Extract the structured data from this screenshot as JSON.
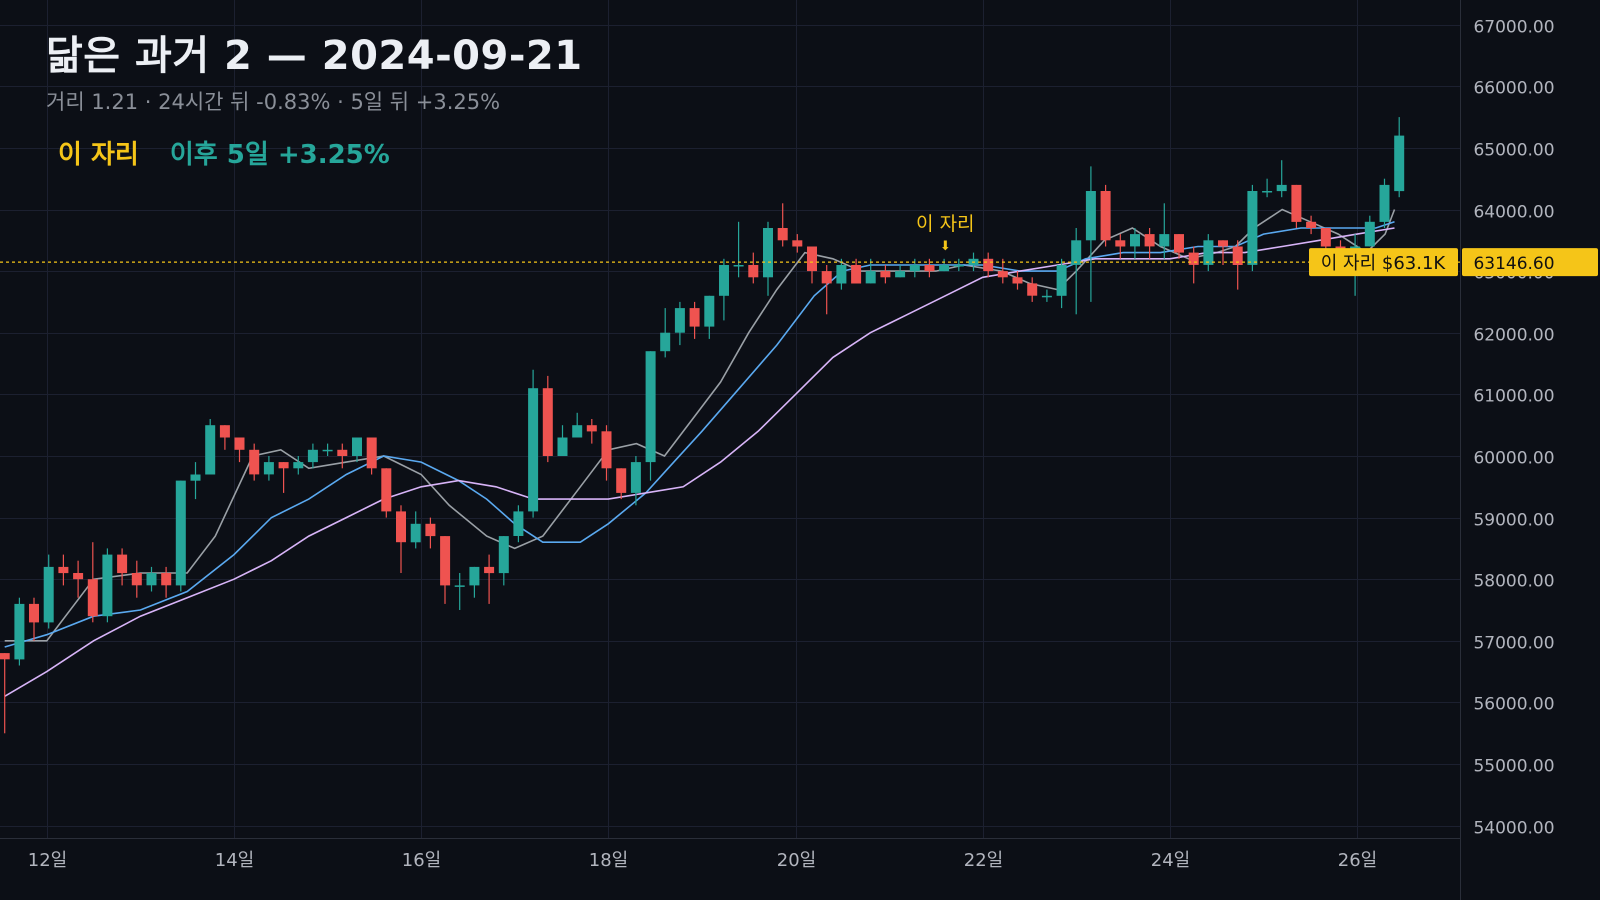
{
  "header": {
    "title": "닮은 과거 2 — 2024-09-21",
    "subtitle": "거리 1.21 · 24시간 뒤 -0.83% · 5일 뒤 +3.25%"
  },
  "legend": {
    "marker_label": "이 자리",
    "performance": "이후 5일 +3.25%"
  },
  "colors": {
    "background": "#0c0f16",
    "up": "#26a69a",
    "down": "#ef5350",
    "highlight": "#f5c518",
    "ma_fast": "#9aa0a6",
    "ma_mid": "#5aa9f0",
    "ma_slow": "#d8b4f8"
  },
  "chart_data": {
    "type": "candlestick",
    "y_axis": {
      "range": [
        53800,
        67400
      ],
      "ticks": [
        54000,
        55000,
        56000,
        57000,
        58000,
        59000,
        60000,
        61000,
        62000,
        63000,
        64000,
        65000,
        66000,
        67000
      ],
      "tick_labels": [
        "54000.00",
        "55000.00",
        "56000.00",
        "57000.00",
        "58000.00",
        "59000.00",
        "60000.00",
        "61000.00",
        "62000.00",
        "63000.00",
        "64000.00",
        "65000.00",
        "66000.00",
        "67000.00"
      ],
      "position": "right"
    },
    "x_axis": {
      "range_days": [
        11.5,
        27.1
      ],
      "ticks": [
        12,
        14,
        16,
        18,
        20,
        22,
        24,
        26
      ],
      "tick_labels": [
        "12일",
        "14일",
        "16일",
        "18일",
        "20일",
        "22일",
        "24일",
        "26일"
      ]
    },
    "grid": true,
    "current_price": {
      "value": 63146.6,
      "label": "63146.60",
      "tag": "이 자리 $63.1K"
    },
    "annotation": {
      "text": "이 자리",
      "day": 21.6,
      "arrow": "⬇"
    },
    "candles": [
      [
        56800,
        56700,
        55500,
        56800
      ],
      [
        56700,
        57600,
        56600,
        57700
      ],
      [
        57600,
        57300,
        57000,
        57700
      ],
      [
        57300,
        58200,
        57200,
        58400
      ],
      [
        58200,
        58100,
        57900,
        58400
      ],
      [
        58100,
        58000,
        57700,
        58300
      ],
      [
        58000,
        57400,
        57300,
        58600
      ],
      [
        57400,
        58400,
        57300,
        58500
      ],
      [
        58400,
        58100,
        57900,
        58500
      ],
      [
        58100,
        57900,
        57700,
        58300
      ],
      [
        57900,
        58100,
        57800,
        58200
      ],
      [
        58100,
        57900,
        57700,
        58200
      ],
      [
        57900,
        59600,
        57800,
        59600
      ],
      [
        59600,
        59700,
        59300,
        59900
      ],
      [
        59700,
        60500,
        59700,
        60600
      ],
      [
        60500,
        60300,
        60100,
        60500
      ],
      [
        60300,
        60100,
        59900,
        60300
      ],
      [
        60100,
        59700,
        59600,
        60200
      ],
      [
        59700,
        59900,
        59600,
        60000
      ],
      [
        59900,
        59800,
        59400,
        59900
      ],
      [
        59800,
        59900,
        59700,
        60000
      ],
      [
        59900,
        60100,
        59800,
        60200
      ],
      [
        60100,
        60100,
        60000,
        60200
      ],
      [
        60100,
        60000,
        59800,
        60200
      ],
      [
        60000,
        60300,
        59900,
        60300
      ],
      [
        60300,
        59800,
        59700,
        60300
      ],
      [
        59800,
        59100,
        59000,
        59800
      ],
      [
        59100,
        58600,
        58100,
        59200
      ],
      [
        58600,
        58900,
        58500,
        59100
      ],
      [
        58900,
        58700,
        58500,
        59000
      ],
      [
        58700,
        57900,
        57600,
        58700
      ],
      [
        57900,
        57900,
        57500,
        58100
      ],
      [
        57900,
        58200,
        57700,
        58200
      ],
      [
        58200,
        58100,
        57600,
        58400
      ],
      [
        58100,
        58700,
        57900,
        58700
      ],
      [
        58700,
        59100,
        58600,
        59200
      ],
      [
        59100,
        61100,
        59000,
        61400
      ],
      [
        61100,
        60000,
        59900,
        61300
      ],
      [
        60000,
        60300,
        60000,
        60500
      ],
      [
        60300,
        60500,
        60300,
        60700
      ],
      [
        60500,
        60400,
        60200,
        60600
      ],
      [
        60400,
        59800,
        59600,
        60500
      ],
      [
        59800,
        59400,
        59300,
        59800
      ],
      [
        59400,
        59900,
        59200,
        60000
      ],
      [
        59900,
        61700,
        59600,
        61700
      ],
      [
        61700,
        62000,
        61600,
        62400
      ],
      [
        62000,
        62400,
        61800,
        62500
      ],
      [
        62400,
        62100,
        61900,
        62500
      ],
      [
        62100,
        62600,
        61900,
        62600
      ],
      [
        62600,
        63100,
        62200,
        63200
      ],
      [
        63100,
        63100,
        62900,
        63800
      ],
      [
        63100,
        62900,
        62800,
        63300
      ],
      [
        62900,
        63700,
        62600,
        63800
      ],
      [
        63700,
        63500,
        63400,
        64100
      ],
      [
        63500,
        63400,
        63300,
        63600
      ],
      [
        63400,
        63000,
        62800,
        63400
      ],
      [
        63000,
        62800,
        62300,
        63100
      ],
      [
        62800,
        63100,
        62700,
        63200
      ],
      [
        63100,
        62800,
        62800,
        63200
      ],
      [
        62800,
        63000,
        62800,
        63200
      ],
      [
        63000,
        62900,
        62800,
        63100
      ],
      [
        62900,
        63000,
        62900,
        63100
      ],
      [
        63000,
        63100,
        62900,
        63200
      ],
      [
        63100,
        63000,
        62900,
        63200
      ],
      [
        63000,
        63100,
        63000,
        63200
      ],
      [
        63100,
        63100,
        63000,
        63200
      ],
      [
        63100,
        63200,
        63000,
        63300
      ],
      [
        63200,
        63000,
        62900,
        63300
      ],
      [
        63000,
        62900,
        62800,
        63200
      ],
      [
        62900,
        62800,
        62700,
        63000
      ],
      [
        62800,
        62600,
        62500,
        62900
      ],
      [
        62600,
        62600,
        62500,
        62700
      ],
      [
        62600,
        63100,
        62400,
        63200
      ],
      [
        63100,
        63500,
        62300,
        63700
      ],
      [
        63500,
        64300,
        62500,
        64700
      ],
      [
        64300,
        63500,
        63400,
        64400
      ],
      [
        63500,
        63400,
        63200,
        63600
      ],
      [
        63400,
        63600,
        63200,
        63700
      ],
      [
        63600,
        63400,
        63200,
        63700
      ],
      [
        63400,
        63600,
        63200,
        64100
      ],
      [
        63600,
        63300,
        63200,
        63600
      ],
      [
        63300,
        63100,
        62800,
        63400
      ],
      [
        63100,
        63500,
        63000,
        63600
      ],
      [
        63500,
        63400,
        63100,
        63500
      ],
      [
        63400,
        63100,
        62700,
        63500
      ],
      [
        63100,
        64300,
        63000,
        64400
      ],
      [
        64300,
        64300,
        64200,
        64500
      ],
      [
        64300,
        64400,
        64200,
        64800
      ],
      [
        64400,
        63800,
        63700,
        64400
      ],
      [
        63800,
        63700,
        63600,
        63900
      ],
      [
        63700,
        63400,
        63300,
        63700
      ],
      [
        63400,
        63300,
        63200,
        63500
      ],
      [
        63300,
        63400,
        62600,
        63600
      ],
      [
        63400,
        63800,
        63400,
        63900
      ],
      [
        63800,
        64400,
        63700,
        64500
      ],
      [
        64300,
        65200,
        64200,
        65500
      ]
    ],
    "moving_averages": [
      {
        "color": "ma_fast",
        "points": [
          [
            11.55,
            57000
          ],
          [
            12.0,
            57000
          ],
          [
            12.5,
            58000
          ],
          [
            13.0,
            58100
          ],
          [
            13.5,
            58100
          ],
          [
            13.8,
            58700
          ],
          [
            14.2,
            60000
          ],
          [
            14.5,
            60100
          ],
          [
            14.8,
            59800
          ],
          [
            15.2,
            59900
          ],
          [
            15.6,
            60000
          ],
          [
            16.0,
            59700
          ],
          [
            16.3,
            59200
          ],
          [
            16.7,
            58700
          ],
          [
            17.0,
            58500
          ],
          [
            17.3,
            58700
          ],
          [
            17.7,
            59500
          ],
          [
            18.0,
            60100
          ],
          [
            18.3,
            60200
          ],
          [
            18.6,
            60000
          ],
          [
            18.9,
            60600
          ],
          [
            19.2,
            61200
          ],
          [
            19.5,
            62000
          ],
          [
            19.8,
            62700
          ],
          [
            20.1,
            63300
          ],
          [
            20.4,
            63200
          ],
          [
            20.7,
            63000
          ],
          [
            21.0,
            63000
          ],
          [
            21.5,
            63000
          ],
          [
            21.8,
            63100
          ],
          [
            22.2,
            63000
          ],
          [
            22.5,
            62800
          ],
          [
            22.8,
            62700
          ],
          [
            23.0,
            63000
          ],
          [
            23.3,
            63500
          ],
          [
            23.6,
            63700
          ],
          [
            23.9,
            63400
          ],
          [
            24.2,
            63200
          ],
          [
            24.5,
            63300
          ],
          [
            24.7,
            63400
          ],
          [
            24.9,
            63700
          ],
          [
            25.2,
            64000
          ],
          [
            25.5,
            63800
          ],
          [
            25.8,
            63600
          ],
          [
            26.1,
            63300
          ],
          [
            26.3,
            63600
          ],
          [
            26.4,
            64000
          ]
        ]
      },
      {
        "color": "ma_mid",
        "points": [
          [
            11.55,
            56900
          ],
          [
            12.0,
            57100
          ],
          [
            12.5,
            57400
          ],
          [
            13.0,
            57500
          ],
          [
            13.5,
            57800
          ],
          [
            14.0,
            58400
          ],
          [
            14.4,
            59000
          ],
          [
            14.8,
            59300
          ],
          [
            15.2,
            59700
          ],
          [
            15.6,
            60000
          ],
          [
            16.0,
            59900
          ],
          [
            16.4,
            59600
          ],
          [
            16.7,
            59300
          ],
          [
            17.0,
            58900
          ],
          [
            17.3,
            58600
          ],
          [
            17.7,
            58600
          ],
          [
            18.0,
            58900
          ],
          [
            18.4,
            59400
          ],
          [
            18.7,
            59900
          ],
          [
            19.0,
            60400
          ],
          [
            19.4,
            61100
          ],
          [
            19.8,
            61800
          ],
          [
            20.2,
            62600
          ],
          [
            20.5,
            63000
          ],
          [
            20.8,
            63100
          ],
          [
            21.2,
            63100
          ],
          [
            21.6,
            63100
          ],
          [
            22.0,
            63100
          ],
          [
            22.4,
            63000
          ],
          [
            22.8,
            63000
          ],
          [
            23.1,
            63200
          ],
          [
            23.5,
            63300
          ],
          [
            23.9,
            63300
          ],
          [
            24.3,
            63400
          ],
          [
            24.7,
            63400
          ],
          [
            25.0,
            63600
          ],
          [
            25.4,
            63700
          ],
          [
            25.8,
            63700
          ],
          [
            26.2,
            63700
          ],
          [
            26.4,
            63800
          ]
        ]
      },
      {
        "color": "ma_slow",
        "points": [
          [
            11.55,
            56100
          ],
          [
            12.0,
            56500
          ],
          [
            12.5,
            57000
          ],
          [
            13.0,
            57400
          ],
          [
            13.5,
            57700
          ],
          [
            14.0,
            58000
          ],
          [
            14.4,
            58300
          ],
          [
            14.8,
            58700
          ],
          [
            15.2,
            59000
          ],
          [
            15.6,
            59300
          ],
          [
            16.0,
            59500
          ],
          [
            16.4,
            59600
          ],
          [
            16.8,
            59500
          ],
          [
            17.2,
            59300
          ],
          [
            17.6,
            59300
          ],
          [
            18.0,
            59300
          ],
          [
            18.4,
            59400
          ],
          [
            18.8,
            59500
          ],
          [
            19.2,
            59900
          ],
          [
            19.6,
            60400
          ],
          [
            20.0,
            61000
          ],
          [
            20.4,
            61600
          ],
          [
            20.8,
            62000
          ],
          [
            21.2,
            62300
          ],
          [
            21.6,
            62600
          ],
          [
            22.0,
            62900
          ],
          [
            22.4,
            63000
          ],
          [
            22.8,
            63100
          ],
          [
            23.2,
            63200
          ],
          [
            23.6,
            63200
          ],
          [
            24.0,
            63200
          ],
          [
            24.4,
            63300
          ],
          [
            24.8,
            63300
          ],
          [
            25.2,
            63400
          ],
          [
            25.6,
            63500
          ],
          [
            26.0,
            63600
          ],
          [
            26.4,
            63700
          ]
        ]
      }
    ]
  }
}
